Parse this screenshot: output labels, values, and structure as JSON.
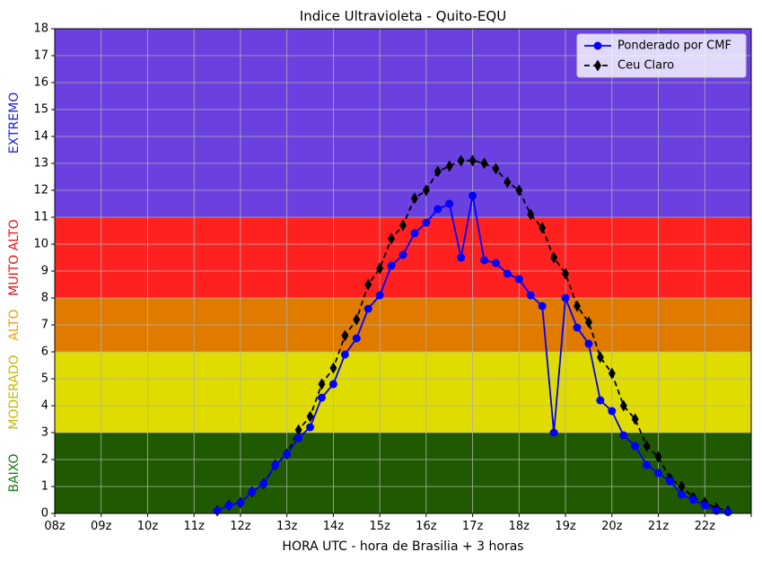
{
  "chart_data": {
    "type": "line",
    "title": "Indice Ultravioleta - Quito-EQU",
    "xlabel": "HORA UTC - hora de Brasilia + 3 horas",
    "ylabel": "",
    "xlim": [
      8,
      23
    ],
    "ylim": [
      0,
      18
    ],
    "grid": true,
    "legend_position": "top-right",
    "x_tick_values": [
      8,
      9,
      10,
      11,
      12,
      13,
      14,
      15,
      16,
      17,
      18,
      19,
      20,
      21,
      22,
      23
    ],
    "x_tick_labels": [
      "08z",
      "09z",
      "10z",
      "11z",
      "12z",
      "13z",
      "14z",
      "15z",
      "16z",
      "17z",
      "18z",
      "19z",
      "20z",
      "21z",
      "22z",
      ""
    ],
    "y_tick_values": [
      0,
      1,
      2,
      3,
      4,
      5,
      6,
      7,
      8,
      9,
      10,
      11,
      12,
      13,
      14,
      15,
      16,
      17,
      18
    ],
    "y_tick_labels": [
      "0",
      "1",
      "2",
      "3",
      "4",
      "5",
      "6",
      "7",
      "8",
      "9",
      "10",
      "11",
      "12",
      "13",
      "14",
      "15",
      "16",
      "17",
      "18"
    ],
    "bands": [
      {
        "label": "BAIXO",
        "from": 0,
        "to": 3,
        "color": "#1f5a00",
        "label_color": "#1a7a1a"
      },
      {
        "label": "MODERADO",
        "from": 3,
        "to": 6,
        "color": "#e0dc00",
        "label_color": "#c8b800"
      },
      {
        "label": "ALTO",
        "from": 6,
        "to": 8,
        "color": "#e07b00",
        "label_color": "#f0a000"
      },
      {
        "label": "MUITO ALTO",
        "from": 8,
        "to": 11,
        "color": "#ff2020",
        "label_color": "#ee1111"
      },
      {
        "label": "EXTREMO",
        "from": 11,
        "to": 18,
        "color": "#6b40e0",
        "label_color": "#2020dd"
      }
    ],
    "series": [
      {
        "name": "Ponderado por CMF",
        "color": "#0000ff",
        "marker": "circle",
        "linestyle": "solid",
        "x": [
          11.5,
          11.75,
          12.0,
          12.25,
          12.5,
          12.75,
          13.0,
          13.25,
          13.5,
          13.75,
          14.0,
          14.25,
          14.5,
          14.75,
          15.0,
          15.25,
          15.5,
          15.75,
          16.0,
          16.25,
          16.5,
          16.75,
          17.0,
          17.25,
          17.5,
          17.75,
          18.0,
          18.25,
          18.5,
          18.75,
          19.0,
          19.25,
          19.5,
          19.75,
          20.0,
          20.25,
          20.5,
          20.75,
          21.0,
          21.25,
          21.5,
          21.75,
          22.0,
          22.25,
          22.5
        ],
        "y": [
          0.1,
          0.3,
          0.4,
          0.8,
          1.1,
          1.8,
          2.2,
          2.8,
          3.2,
          4.3,
          4.8,
          5.9,
          6.5,
          7.6,
          8.1,
          9.2,
          9.6,
          10.4,
          10.8,
          11.3,
          11.5,
          9.5,
          11.8,
          9.4,
          9.3,
          8.9,
          8.7,
          8.1,
          7.7,
          3.0,
          8.0,
          6.9,
          6.3,
          4.2,
          3.8,
          2.9,
          2.5,
          1.8,
          1.5,
          1.2,
          0.7,
          0.5,
          0.3,
          0.1,
          0.05
        ]
      },
      {
        "name": "Ceu Claro",
        "color": "#000000",
        "marker": "diamond",
        "linestyle": "dashed",
        "x": [
          11.5,
          11.75,
          12.0,
          12.25,
          12.5,
          12.75,
          13.0,
          13.25,
          13.5,
          13.75,
          14.0,
          14.25,
          14.5,
          14.75,
          15.0,
          15.25,
          15.5,
          15.75,
          16.0,
          16.25,
          16.5,
          16.75,
          17.0,
          17.25,
          17.5,
          17.75,
          18.0,
          18.25,
          18.5,
          18.75,
          19.0,
          19.25,
          19.5,
          19.75,
          20.0,
          20.25,
          20.5,
          20.75,
          21.0,
          21.25,
          21.5,
          21.75,
          22.0,
          22.25,
          22.5
        ],
        "y": [
          0.1,
          0.3,
          0.4,
          0.8,
          1.1,
          1.8,
          2.2,
          3.1,
          3.6,
          4.8,
          5.4,
          6.6,
          7.2,
          8.5,
          9.1,
          10.2,
          10.7,
          11.7,
          12.0,
          12.7,
          12.9,
          13.1,
          13.1,
          13.0,
          12.8,
          12.3,
          12.0,
          11.1,
          10.6,
          9.5,
          8.9,
          7.7,
          7.1,
          5.8,
          5.2,
          4.0,
          3.5,
          2.5,
          2.1,
          1.3,
          1.0,
          0.6,
          0.4,
          0.2,
          0.1
        ]
      }
    ]
  }
}
